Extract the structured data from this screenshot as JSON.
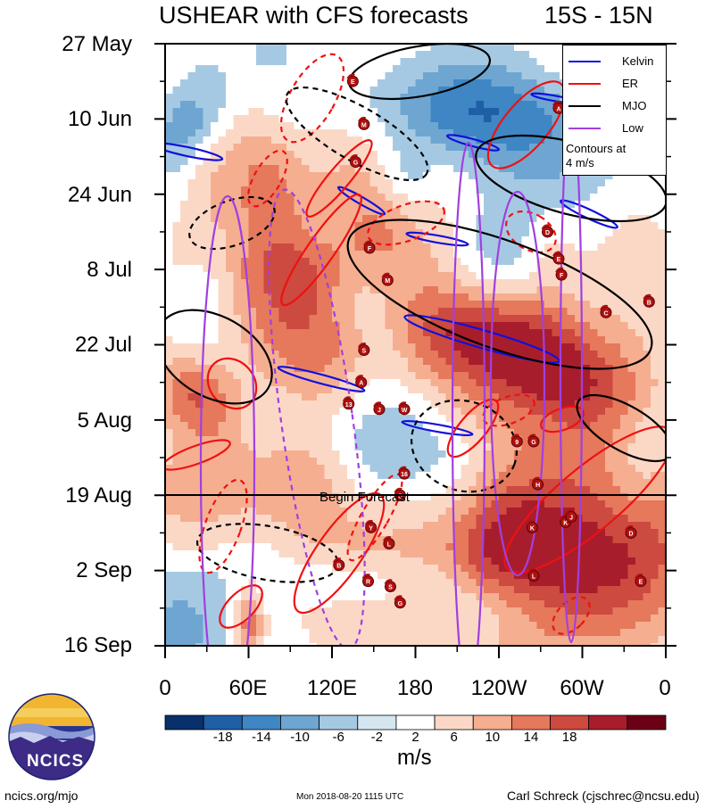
{
  "header": {
    "title_left": "USHEAR with CFS forecasts",
    "title_right": "15S - 15N"
  },
  "chart_data": {
    "type": "heatmap",
    "title": "USHEAR with CFS forecasts",
    "latitude_band": "15S - 15N",
    "ylabels": [
      "27 May",
      "10 Jun",
      "24 Jun",
      "8 Jul",
      "22 Jul",
      "5 Aug",
      "19 Aug",
      "2 Sep",
      "16 Sep"
    ],
    "xlabels": [
      "0",
      "60E",
      "120E",
      "180",
      "120W",
      "60W",
      "0"
    ],
    "xlabel_lon": [
      0,
      60,
      120,
      180,
      240,
      300,
      360
    ],
    "colorbar": {
      "ticks": [
        "-18",
        "-14",
        "-10",
        "-6",
        "-2",
        "2",
        "6",
        "10",
        "14",
        "18"
      ],
      "colors": [
        "#08306b",
        "#1f5fa6",
        "#3f86c4",
        "#6ea6d1",
        "#a6c9e3",
        "#d6e6f1",
        "#ffffff",
        "#fbd8c6",
        "#f5ae90",
        "#e6785c",
        "#cc4a3f",
        "#a81d2c",
        "#6b0016"
      ],
      "units": "m/s"
    },
    "begin_forecast_label": "Begin Forecast",
    "begin_forecast_date": "19 Aug",
    "legend": {
      "entries": [
        {
          "name": "Kelvin",
          "color": "#1010dd"
        },
        {
          "name": "ER",
          "color": "#ee1111"
        },
        {
          "name": "MJO",
          "color": "#000000"
        },
        {
          "name": "Low",
          "color": "#a040e0"
        }
      ],
      "note_line1": "Contours at",
      "note_line2": "4 m/s",
      "position": "top-right"
    },
    "storm_markers": [
      {
        "label": "E",
        "lon": 135,
        "day": 7
      },
      {
        "label": "M",
        "lon": 143,
        "day": 15
      },
      {
        "label": "G",
        "lon": 137,
        "day": 22
      },
      {
        "label": "A",
        "lon": 283,
        "day": 12
      },
      {
        "label": "B",
        "lon": 290,
        "day": 17
      },
      {
        "label": "C",
        "lon": 292,
        "day": 23
      },
      {
        "label": "D",
        "lon": 275,
        "day": 35
      },
      {
        "label": "E",
        "lon": 283,
        "day": 40
      },
      {
        "label": "F",
        "lon": 285,
        "day": 43
      },
      {
        "label": "C",
        "lon": 317,
        "day": 50
      },
      {
        "label": "B",
        "lon": 348,
        "day": 48
      },
      {
        "label": "F",
        "lon": 147,
        "day": 38
      },
      {
        "label": "M",
        "lon": 160,
        "day": 44
      },
      {
        "label": "S",
        "lon": 143,
        "day": 57
      },
      {
        "label": "A",
        "lon": 141,
        "day": 63
      },
      {
        "label": "13",
        "lon": 132,
        "day": 67
      },
      {
        "label": "J",
        "lon": 154,
        "day": 68
      },
      {
        "label": "W",
        "lon": 172,
        "day": 68
      },
      {
        "label": "9",
        "lon": 253,
        "day": 74
      },
      {
        "label": "G",
        "lon": 265,
        "day": 74
      },
      {
        "label": "16",
        "lon": 172,
        "day": 80
      },
      {
        "label": "S",
        "lon": 169,
        "day": 84
      },
      {
        "label": "H",
        "lon": 268,
        "day": 82
      },
      {
        "label": "Y",
        "lon": 148,
        "day": 90
      },
      {
        "label": "K",
        "lon": 264,
        "day": 90
      },
      {
        "label": "K",
        "lon": 288,
        "day": 89
      },
      {
        "label": "J",
        "lon": 292,
        "day": 88
      },
      {
        "label": "D",
        "lon": 335,
        "day": 91
      },
      {
        "label": "L",
        "lon": 161,
        "day": 93
      },
      {
        "label": "B",
        "lon": 125,
        "day": 97
      },
      {
        "label": "R",
        "lon": 146,
        "day": 100
      },
      {
        "label": "S",
        "lon": 162,
        "day": 101
      },
      {
        "label": "G",
        "lon": 169,
        "day": 104
      },
      {
        "label": "L",
        "lon": 265,
        "day": 99
      },
      {
        "label": "E",
        "lon": 342,
        "day": 100
      }
    ]
  },
  "footer": {
    "left": "ncics.org/mjo",
    "center": "Mon 2018-08-20 1115 UTC",
    "right": "Carl Schreck (cjschrec@ncsu.edu)"
  },
  "logo": {
    "text": "NCICS"
  }
}
